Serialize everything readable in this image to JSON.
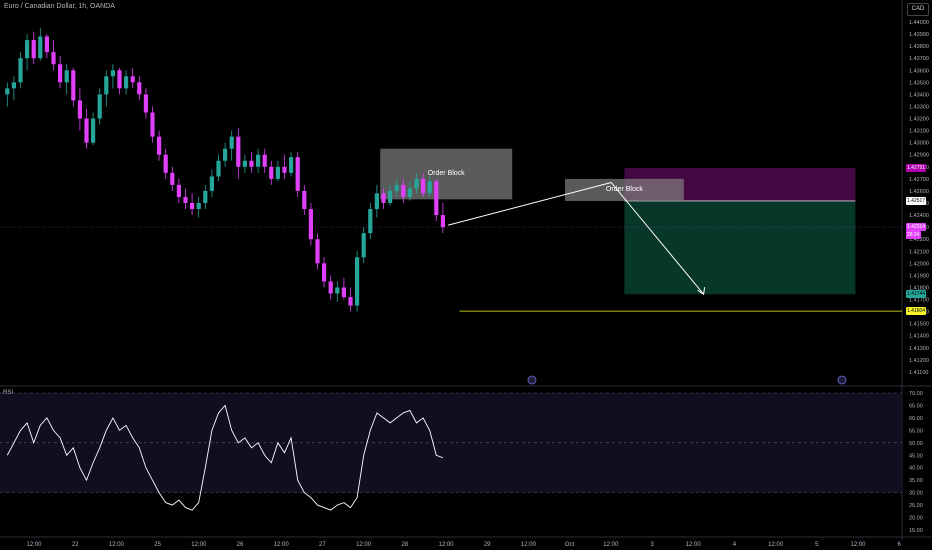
{
  "header": {
    "title": "Euro / Canadian Dollar, 1h, OANDA",
    "currency": "CAD"
  },
  "order_blocks": [
    {
      "label": "Order Block",
      "top": 1.4295,
      "bottom": 1.4253,
      "from": 57,
      "to": 77
    },
    {
      "label": "Order Block",
      "top": 1.427,
      "bottom": 1.42517,
      "from": 85,
      "to": 103
    }
  ],
  "position": {
    "entry": 1.42517,
    "stop": 1.42791,
    "target": 1.41744,
    "from": 94,
    "to": 129,
    "stop_label": "1.42791",
    "entry_label": "1.42517",
    "target_label": "1.41744"
  },
  "support_line": {
    "value": 1.41604,
    "from": 69,
    "label": "1.41604"
  },
  "current_price": {
    "label": "1.42314",
    "countdown": "28:24"
  },
  "event_markers": [
    {
      "icon": "calendar-event-icon",
      "label": "8"
    },
    {
      "icon": "calendar-event-icon",
      "label": "Ⓒ"
    }
  ],
  "colors": {
    "bull": "#26a69a",
    "bear": "#e040fb",
    "rsi_line": "#ffffff",
    "stop_zone": "#4a0a4a",
    "target_zone": "#073d2c",
    "support_line": "#f5f52a",
    "order_block": "#808080"
  },
  "price_axis": {
    "min": 1.41,
    "max": 1.44,
    "ticks": [
      "1.44000",
      "1.43900",
      "1.43800",
      "1.43700",
      "1.43600",
      "1.43500",
      "1.43400",
      "1.43300",
      "1.43200",
      "1.43100",
      "1.43000",
      "1.42900",
      "1.42800",
      "1.42700",
      "1.42600",
      "1.42500",
      "1.42400",
      "1.42300",
      "1.42200",
      "1.42100",
      "1.42000",
      "1.41900",
      "1.41800",
      "1.41700",
      "1.41600",
      "1.41500",
      "1.41400",
      "1.41300",
      "1.41200",
      "1.41100"
    ]
  },
  "time_axis": {
    "labels": [
      "12:00",
      "22",
      "12:00",
      "25",
      "12:00",
      "26",
      "12:00",
      "27",
      "12:00",
      "28",
      "12:00",
      "29",
      "12:00",
      "Oct",
      "12:00",
      "3",
      "12:00",
      "4",
      "12:00",
      "5",
      "12:00",
      "6"
    ]
  },
  "rsi_panel": {
    "label": "RSI",
    "min": 15,
    "max": 70,
    "ticks": [
      "70.00",
      "65.00",
      "60.00",
      "55.00",
      "50.00",
      "45.00",
      "40.00",
      "35.00",
      "30.00",
      "25.00",
      "20.00",
      "15.00"
    ],
    "upper_band": 70,
    "lower_band": 30,
    "middle": 50
  },
  "chart_data": {
    "type": "candlestick",
    "title": "Euro / Canadian Dollar, 1h, OANDA",
    "x_unit": "bar index (1h candles)",
    "ohlc": [
      [
        1.434,
        1.435,
        1.433,
        1.4345
      ],
      [
        1.4345,
        1.4355,
        1.4335,
        1.435
      ],
      [
        1.435,
        1.4375,
        1.4345,
        1.437
      ],
      [
        1.437,
        1.439,
        1.436,
        1.4385
      ],
      [
        1.4385,
        1.4392,
        1.4365,
        1.437
      ],
      [
        1.437,
        1.4395,
        1.4368,
        1.4388
      ],
      [
        1.4388,
        1.439,
        1.437,
        1.4375
      ],
      [
        1.4375,
        1.4385,
        1.436,
        1.4365
      ],
      [
        1.4365,
        1.4372,
        1.4345,
        1.435
      ],
      [
        1.435,
        1.4365,
        1.434,
        1.436
      ],
      [
        1.436,
        1.4362,
        1.433,
        1.4335
      ],
      [
        1.4335,
        1.4345,
        1.431,
        1.432
      ],
      [
        1.432,
        1.4328,
        1.4295,
        1.43
      ],
      [
        1.43,
        1.4325,
        1.4298,
        1.432
      ],
      [
        1.432,
        1.4345,
        1.4315,
        1.434
      ],
      [
        1.434,
        1.436,
        1.433,
        1.4355
      ],
      [
        1.4355,
        1.4365,
        1.4345,
        1.436
      ],
      [
        1.436,
        1.4362,
        1.434,
        1.4345
      ],
      [
        1.4345,
        1.436,
        1.434,
        1.4355
      ],
      [
        1.4355,
        1.4362,
        1.4345,
        1.435
      ],
      [
        1.435,
        1.4355,
        1.4335,
        1.434
      ],
      [
        1.434,
        1.4345,
        1.432,
        1.4325
      ],
      [
        1.4325,
        1.433,
        1.43,
        1.4305
      ],
      [
        1.4305,
        1.431,
        1.4285,
        1.429
      ],
      [
        1.429,
        1.4295,
        1.427,
        1.4275
      ],
      [
        1.4275,
        1.428,
        1.426,
        1.4265
      ],
      [
        1.4265,
        1.427,
        1.425,
        1.4255
      ],
      [
        1.4255,
        1.4262,
        1.4245,
        1.425
      ],
      [
        1.425,
        1.4258,
        1.424,
        1.4245
      ],
      [
        1.4245,
        1.4255,
        1.4238,
        1.425
      ],
      [
        1.425,
        1.4265,
        1.4245,
        1.426
      ],
      [
        1.426,
        1.4278,
        1.4255,
        1.4272
      ],
      [
        1.4272,
        1.429,
        1.4268,
        1.4285
      ],
      [
        1.4285,
        1.43,
        1.428,
        1.4295
      ],
      [
        1.4295,
        1.431,
        1.4285,
        1.4305
      ],
      [
        1.4305,
        1.4312,
        1.427,
        1.428
      ],
      [
        1.428,
        1.429,
        1.4275,
        1.4285
      ],
      [
        1.4285,
        1.4292,
        1.4275,
        1.428
      ],
      [
        1.428,
        1.4295,
        1.4275,
        1.429
      ],
      [
        1.429,
        1.4295,
        1.4275,
        1.428
      ],
      [
        1.428,
        1.4285,
        1.4265,
        1.427
      ],
      [
        1.427,
        1.4285,
        1.4268,
        1.428
      ],
      [
        1.428,
        1.429,
        1.427,
        1.4275
      ],
      [
        1.4275,
        1.4292,
        1.4272,
        1.4288
      ],
      [
        1.4288,
        1.4292,
        1.4255,
        1.426
      ],
      [
        1.426,
        1.4265,
        1.424,
        1.4245
      ],
      [
        1.4245,
        1.425,
        1.4215,
        1.422
      ],
      [
        1.422,
        1.4225,
        1.4195,
        1.42
      ],
      [
        1.42,
        1.4205,
        1.418,
        1.4185
      ],
      [
        1.4185,
        1.419,
        1.417,
        1.4175
      ],
      [
        1.4175,
        1.4185,
        1.4168,
        1.418
      ],
      [
        1.418,
        1.4188,
        1.417,
        1.4172
      ],
      [
        1.4172,
        1.418,
        1.416,
        1.4165
      ],
      [
        1.4165,
        1.421,
        1.416,
        1.4205
      ],
      [
        1.4205,
        1.423,
        1.42,
        1.4225
      ],
      [
        1.4225,
        1.425,
        1.422,
        1.4245
      ],
      [
        1.4245,
        1.4265,
        1.4238,
        1.4258
      ],
      [
        1.4258,
        1.4262,
        1.4245,
        1.425
      ],
      [
        1.425,
        1.4265,
        1.4248,
        1.426
      ],
      [
        1.426,
        1.427,
        1.4255,
        1.4265
      ],
      [
        1.4265,
        1.427,
        1.425,
        1.4255
      ],
      [
        1.4255,
        1.4268,
        1.4252,
        1.4262
      ],
      [
        1.4262,
        1.4275,
        1.4258,
        1.427
      ],
      [
        1.427,
        1.4275,
        1.4255,
        1.4258
      ],
      [
        1.4258,
        1.4272,
        1.4255,
        1.4268
      ],
      [
        1.4268,
        1.427,
        1.4235,
        1.424
      ],
      [
        1.424,
        1.425,
        1.4225,
        1.423
      ]
    ],
    "rsi": [
      45,
      50,
      55,
      58,
      50,
      57,
      60,
      55,
      52,
      45,
      48,
      40,
      35,
      42,
      48,
      55,
      60,
      55,
      57,
      52,
      48,
      40,
      35,
      30,
      26,
      25,
      27,
      24,
      23,
      26,
      40,
      55,
      62,
      65,
      55,
      50,
      52,
      48,
      50,
      45,
      42,
      50,
      46,
      52,
      35,
      30,
      28,
      25,
      24,
      23,
      25,
      26,
      24,
      28,
      45,
      55,
      62,
      60,
      58,
      60,
      62,
      63,
      58,
      60,
      55,
      45,
      44
    ],
    "price_axis": {
      "min": 1.41,
      "max": 1.44
    },
    "rsi_axis": {
      "min": 15,
      "max": 70
    }
  }
}
